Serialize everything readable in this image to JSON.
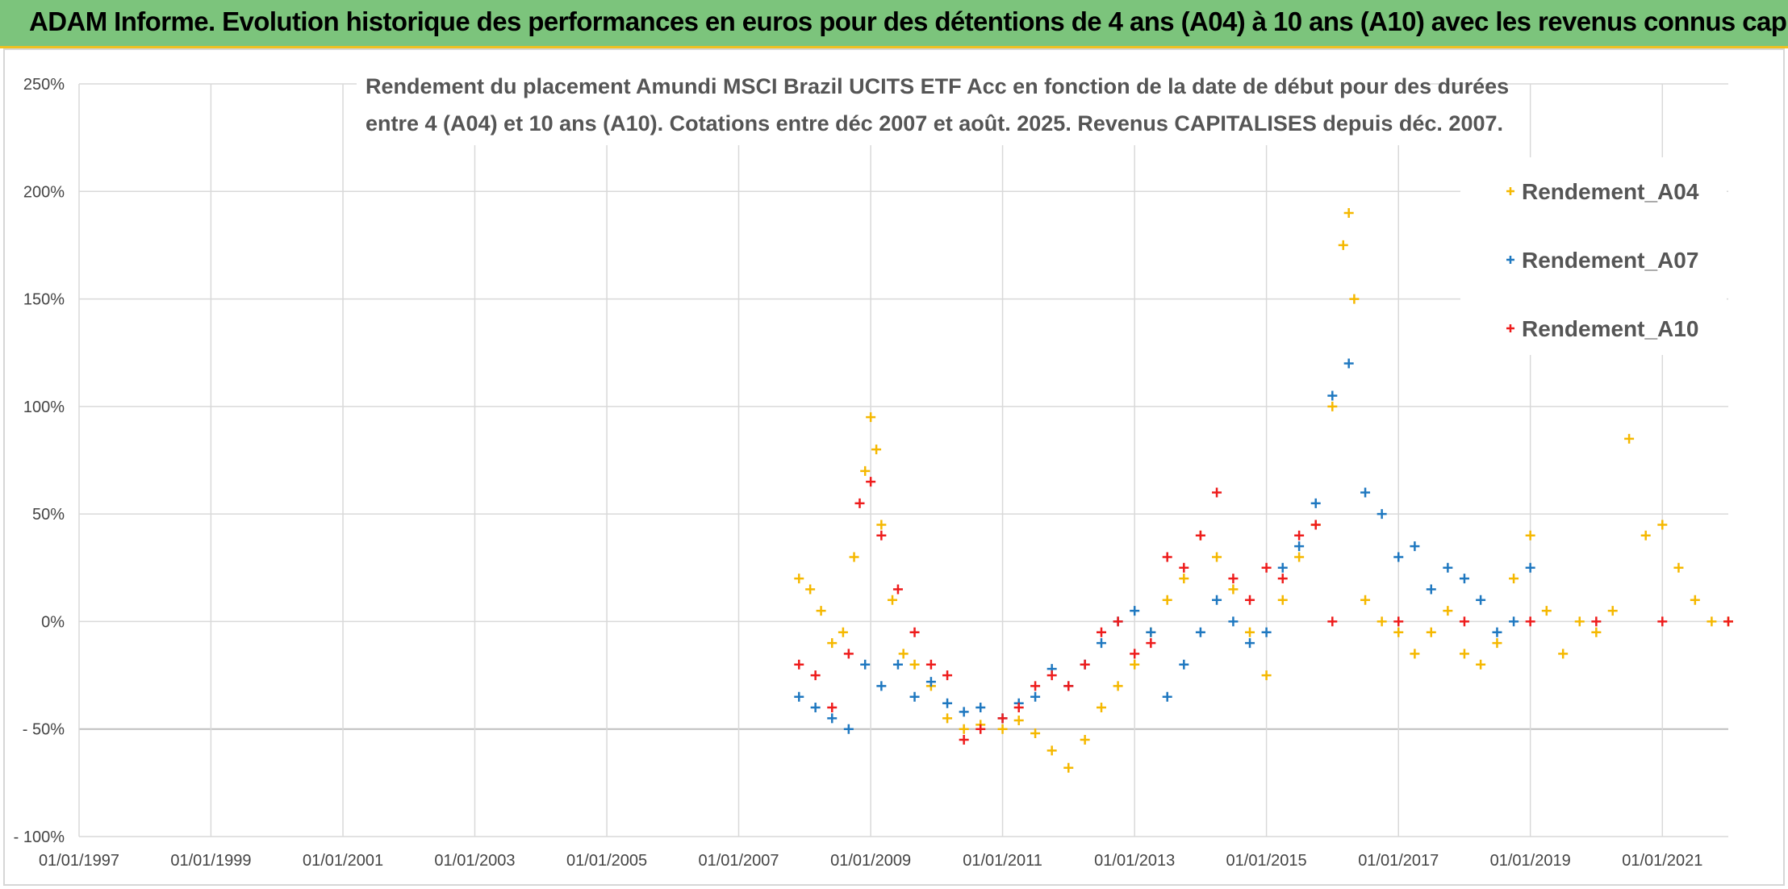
{
  "header": {
    "title": "ADAM Informe. Evolution historique des performances en euros pour des détentions de 4 ans (A04) à 10 ans (A10) avec les revenus connus capitalisés"
  },
  "colors": {
    "banner": "#7cc47c",
    "A04": "#f5b800",
    "A07": "#1f78c0",
    "A10": "#ee1c1c",
    "grid": "#d9d9d9"
  },
  "chart_data": {
    "type": "scatter",
    "title_lines": [
      "Rendement du placement Amundi MSCI Brazil UCITS ETF Acc en fonction de la date de début pour des durées",
      "entre 4 (A04) et 10 ans (A10). Cotations entre déc 2007 et août. 2025. Revenus CAPITALISES depuis déc. 2007."
    ],
    "xlabel": "",
    "ylabel": "",
    "x_ticks": [
      "01/01/1997",
      "01/01/1999",
      "01/01/2001",
      "01/01/2003",
      "01/01/2005",
      "01/01/2007",
      "01/01/2009",
      "01/01/2011",
      "01/01/2013",
      "01/01/2015",
      "01/01/2017",
      "01/01/2019",
      "01/01/2021"
    ],
    "xlim": [
      "1997-01-01",
      "2022-01-01"
    ],
    "y_ticks": [
      "- 100%",
      "- 50%",
      "0%",
      "50%",
      "100%",
      "150%",
      "200%",
      "250%"
    ],
    "ylim": [
      -100,
      250
    ],
    "grid": true,
    "legend_position": "right",
    "marker": "+",
    "series": [
      {
        "name": "Rendement_A04",
        "color": "#f5b800",
        "points": [
          [
            "2007-12-01",
            20
          ],
          [
            "2008-02-01",
            15
          ],
          [
            "2008-04-01",
            5
          ],
          [
            "2008-06-01",
            -10
          ],
          [
            "2008-08-01",
            -5
          ],
          [
            "2008-10-01",
            30
          ],
          [
            "2008-12-01",
            70
          ],
          [
            "2009-01-01",
            95
          ],
          [
            "2009-02-01",
            80
          ],
          [
            "2009-03-01",
            45
          ],
          [
            "2009-05-01",
            10
          ],
          [
            "2009-07-01",
            -15
          ],
          [
            "2009-09-01",
            -20
          ],
          [
            "2009-12-01",
            -30
          ],
          [
            "2010-03-01",
            -45
          ],
          [
            "2010-06-01",
            -50
          ],
          [
            "2010-09-01",
            -48
          ],
          [
            "2011-01-01",
            -50
          ],
          [
            "2011-04-01",
            -46
          ],
          [
            "2011-07-01",
            -52
          ],
          [
            "2011-10-01",
            -60
          ],
          [
            "2012-01-01",
            -68
          ],
          [
            "2012-04-01",
            -55
          ],
          [
            "2012-07-01",
            -40
          ],
          [
            "2012-10-01",
            -30
          ],
          [
            "2013-01-01",
            -20
          ],
          [
            "2013-04-01",
            -5
          ],
          [
            "2013-07-01",
            10
          ],
          [
            "2013-10-01",
            20
          ],
          [
            "2014-01-01",
            40
          ],
          [
            "2014-04-01",
            30
          ],
          [
            "2014-07-01",
            15
          ],
          [
            "2014-10-01",
            -5
          ],
          [
            "2015-01-01",
            -25
          ],
          [
            "2015-04-01",
            10
          ],
          [
            "2015-07-01",
            30
          ],
          [
            "2015-10-01",
            45
          ],
          [
            "2016-01-01",
            100
          ],
          [
            "2016-03-01",
            175
          ],
          [
            "2016-04-01",
            190
          ],
          [
            "2016-05-01",
            150
          ],
          [
            "2016-07-01",
            10
          ],
          [
            "2016-10-01",
            0
          ],
          [
            "2017-01-01",
            -5
          ],
          [
            "2017-04-01",
            -15
          ],
          [
            "2017-07-01",
            -5
          ],
          [
            "2017-10-01",
            5
          ],
          [
            "2018-01-01",
            -15
          ],
          [
            "2018-04-01",
            -20
          ],
          [
            "2018-07-01",
            -10
          ],
          [
            "2018-10-01",
            20
          ],
          [
            "2019-01-01",
            40
          ],
          [
            "2019-04-01",
            5
          ],
          [
            "2019-07-01",
            -15
          ],
          [
            "2019-10-01",
            0
          ],
          [
            "2020-01-01",
            -5
          ],
          [
            "2020-04-01",
            5
          ],
          [
            "2020-07-01",
            85
          ],
          [
            "2020-10-01",
            40
          ],
          [
            "2021-01-01",
            45
          ],
          [
            "2021-04-01",
            25
          ],
          [
            "2021-07-01",
            10
          ],
          [
            "2021-10-01",
            0
          ],
          [
            "2022-01-01",
            0
          ]
        ]
      },
      {
        "name": "Rendement_A07",
        "color": "#1f78c0",
        "points": [
          [
            "2007-12-01",
            -35
          ],
          [
            "2008-03-01",
            -40
          ],
          [
            "2008-06-01",
            -45
          ],
          [
            "2008-09-01",
            -50
          ],
          [
            "2008-12-01",
            -20
          ],
          [
            "2009-03-01",
            -30
          ],
          [
            "2009-06-01",
            -20
          ],
          [
            "2009-09-01",
            -35
          ],
          [
            "2009-12-01",
            -28
          ],
          [
            "2010-03-01",
            -38
          ],
          [
            "2010-06-01",
            -42
          ],
          [
            "2010-09-01",
            -40
          ],
          [
            "2011-01-01",
            -45
          ],
          [
            "2011-04-01",
            -38
          ],
          [
            "2011-07-01",
            -35
          ],
          [
            "2011-10-01",
            -22
          ],
          [
            "2012-01-01",
            -30
          ],
          [
            "2012-04-01",
            -20
          ],
          [
            "2012-07-01",
            -10
          ],
          [
            "2012-10-01",
            0
          ],
          [
            "2013-01-01",
            5
          ],
          [
            "2013-04-01",
            -5
          ],
          [
            "2013-07-01",
            -35
          ],
          [
            "2013-10-01",
            -20
          ],
          [
            "2014-01-01",
            -5
          ],
          [
            "2014-04-01",
            10
          ],
          [
            "2014-07-01",
            0
          ],
          [
            "2014-10-01",
            -10
          ],
          [
            "2015-01-01",
            -5
          ],
          [
            "2015-04-01",
            25
          ],
          [
            "2015-07-01",
            35
          ],
          [
            "2015-10-01",
            55
          ],
          [
            "2016-01-01",
            105
          ],
          [
            "2016-04-01",
            120
          ],
          [
            "2016-07-01",
            60
          ],
          [
            "2016-10-01",
            50
          ],
          [
            "2017-01-01",
            30
          ],
          [
            "2017-04-01",
            35
          ],
          [
            "2017-07-01",
            15
          ],
          [
            "2017-10-01",
            25
          ],
          [
            "2018-01-01",
            20
          ],
          [
            "2018-04-01",
            10
          ],
          [
            "2018-07-01",
            -5
          ],
          [
            "2018-10-01",
            0
          ],
          [
            "2019-01-01",
            25
          ]
        ]
      },
      {
        "name": "Rendement_A10",
        "color": "#ee1c1c",
        "points": [
          [
            "2007-12-01",
            -20
          ],
          [
            "2008-03-01",
            -25
          ],
          [
            "2008-06-01",
            -40
          ],
          [
            "2008-09-01",
            -15
          ],
          [
            "2008-11-01",
            55
          ],
          [
            "2009-01-01",
            65
          ],
          [
            "2009-03-01",
            40
          ],
          [
            "2009-06-01",
            15
          ],
          [
            "2009-09-01",
            -5
          ],
          [
            "2009-12-01",
            -20
          ],
          [
            "2010-03-01",
            -25
          ],
          [
            "2010-06-01",
            -55
          ],
          [
            "2010-09-01",
            -50
          ],
          [
            "2011-01-01",
            -45
          ],
          [
            "2011-04-01",
            -40
          ],
          [
            "2011-07-01",
            -30
          ],
          [
            "2011-10-01",
            -25
          ],
          [
            "2012-01-01",
            -30
          ],
          [
            "2012-04-01",
            -20
          ],
          [
            "2012-07-01",
            -5
          ],
          [
            "2012-10-01",
            0
          ],
          [
            "2013-01-01",
            -15
          ],
          [
            "2013-04-01",
            -10
          ],
          [
            "2013-07-01",
            30
          ],
          [
            "2013-10-01",
            25
          ],
          [
            "2014-01-01",
            40
          ],
          [
            "2014-04-01",
            60
          ],
          [
            "2014-07-01",
            20
          ],
          [
            "2014-10-01",
            10
          ],
          [
            "2015-01-01",
            25
          ],
          [
            "2015-04-01",
            20
          ],
          [
            "2015-07-01",
            40
          ],
          [
            "2015-10-01",
            45
          ],
          [
            "2016-01-01",
            0
          ],
          [
            "2017-01-01",
            0
          ],
          [
            "2018-01-01",
            0
          ],
          [
            "2019-01-01",
            0
          ],
          [
            "2020-01-01",
            0
          ],
          [
            "2021-01-01",
            0
          ],
          [
            "2022-01-01",
            0
          ]
        ]
      }
    ]
  }
}
